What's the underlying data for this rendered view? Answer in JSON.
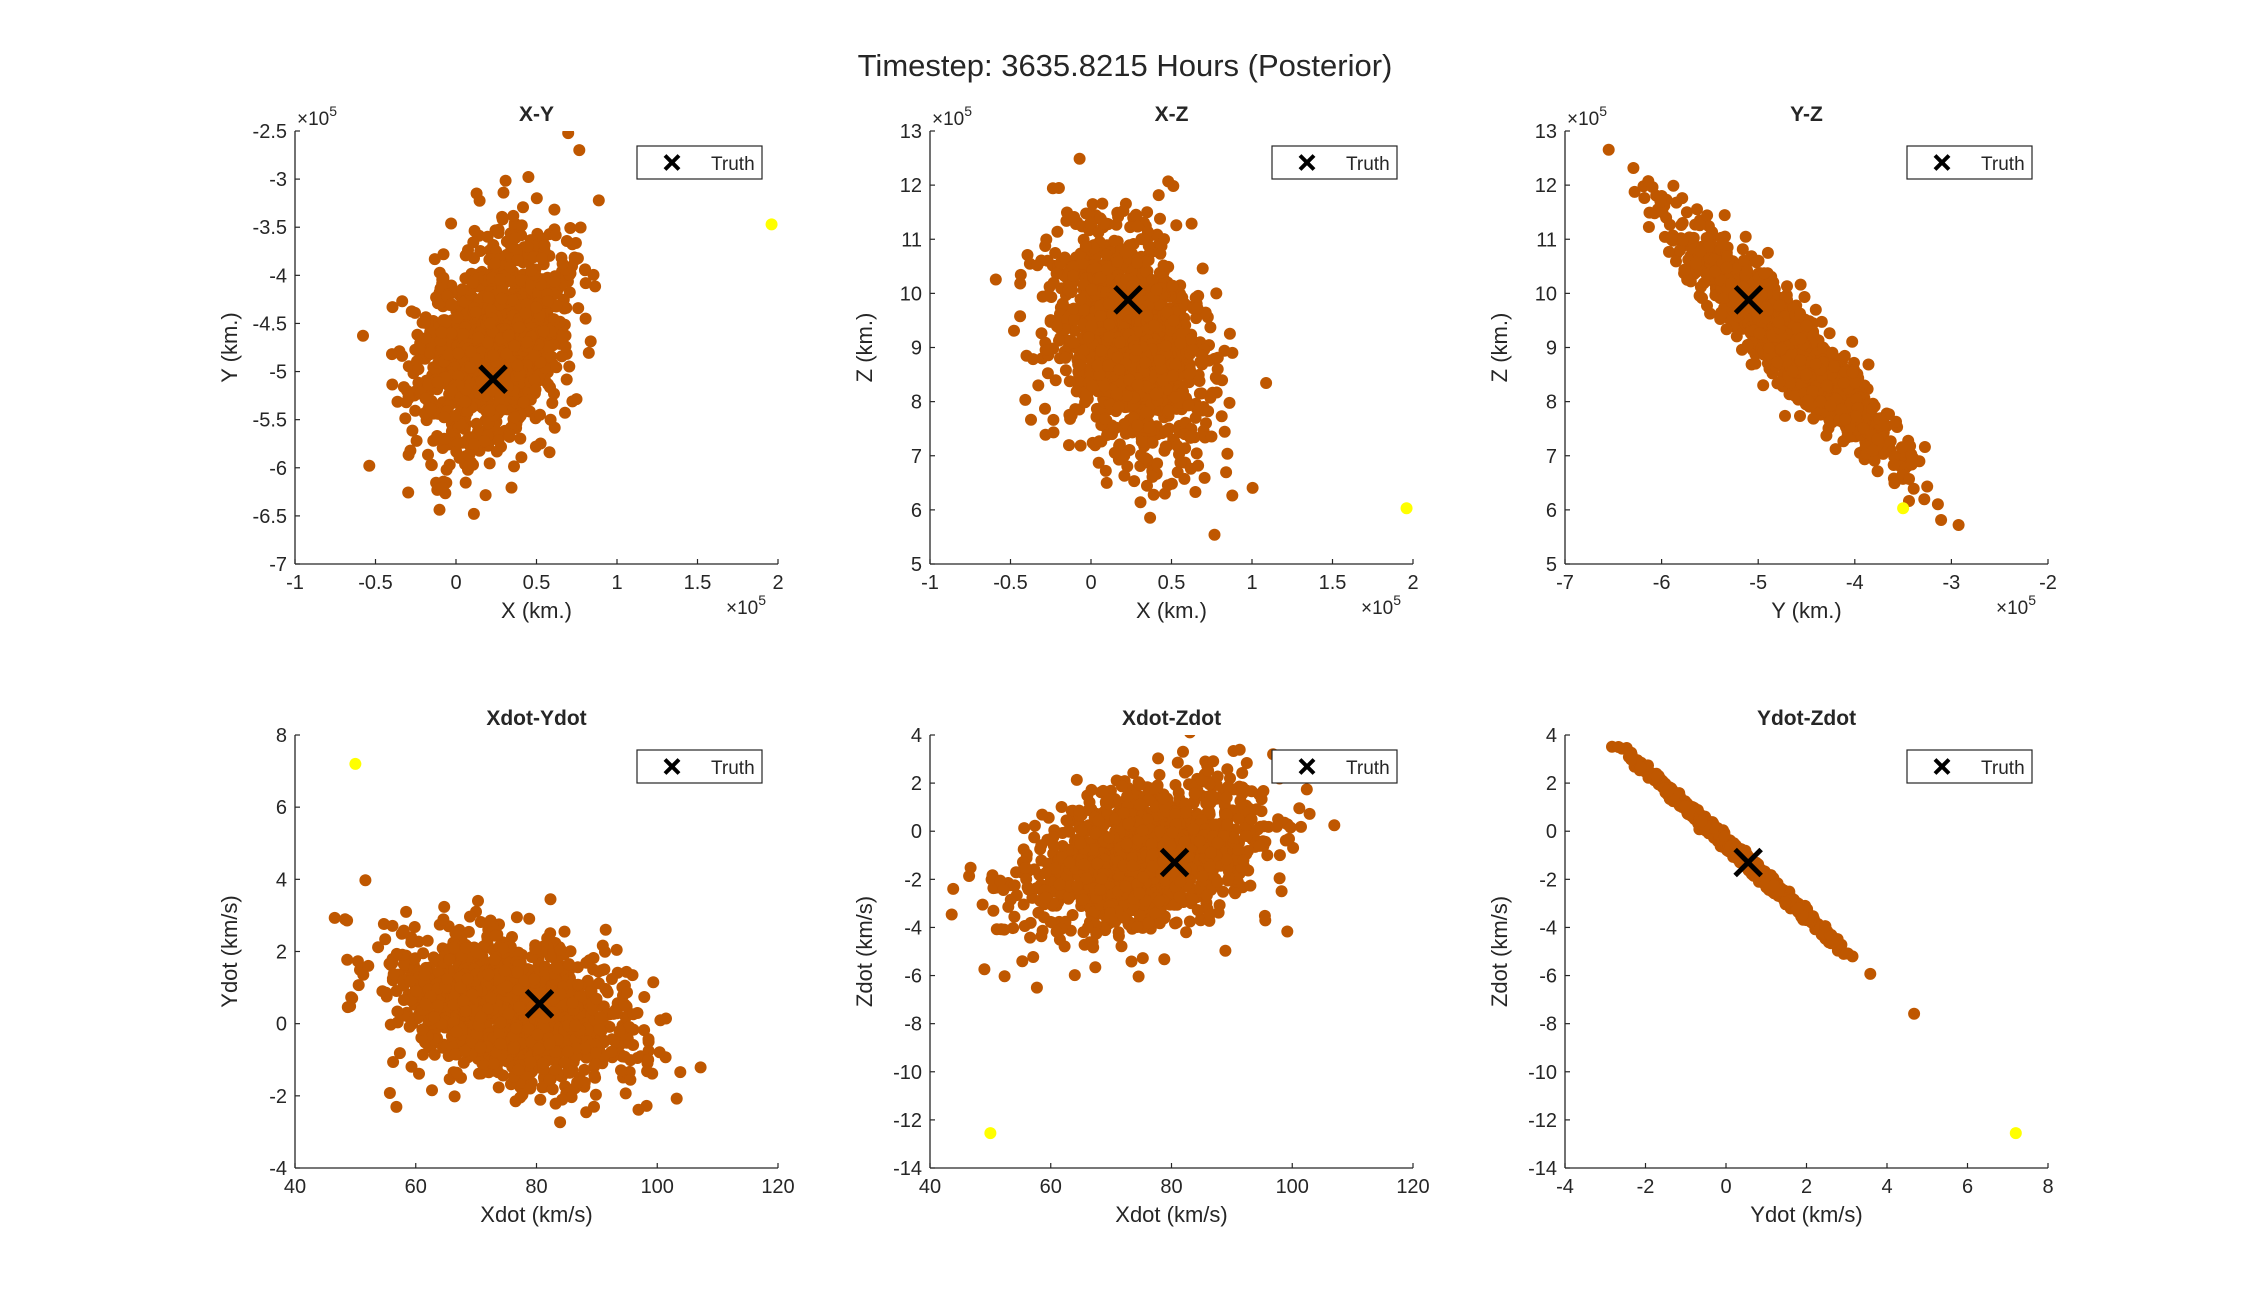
{
  "figure": {
    "title": "Timestep: 3635.8215 Hours (Posterior)"
  },
  "colors": {
    "particle": "#bf5700",
    "outlier": "#ffff00",
    "truth": "#000000",
    "axis": "#262626",
    "background": "#ffffff"
  },
  "chart_data": [
    {
      "type": "scatter",
      "title": "X-Y",
      "xlabel": "X (km.)",
      "ylabel": "Y (km.)",
      "xlim": [
        -1,
        2
      ],
      "ylim": [
        -7,
        -2.5
      ],
      "xticks": [
        -1,
        -0.5,
        0,
        0.5,
        1,
        1.5,
        2
      ],
      "yticks": [
        -7,
        -6.5,
        -6,
        -5.5,
        -5,
        -4.5,
        -4,
        -3.5,
        -3,
        -2.5
      ],
      "x_exponent": "×10^5",
      "y_exponent": "×10^5",
      "legend": {
        "label": "Truth",
        "location": "top-right"
      },
      "truth": {
        "x": 0.23,
        "y": -5.08
      },
      "outlier": {
        "x": 1.96,
        "y": -3.47
      },
      "cloud": {
        "center": [
          0.22,
          -4.7
        ],
        "spread": [
          0.23,
          0.55
        ],
        "rho": 0.35,
        "n": 1400,
        "seed": 11
      }
    },
    {
      "type": "scatter",
      "title": "X-Z",
      "xlabel": "X (km.)",
      "ylabel": "Z (km.)",
      "xlim": [
        -1,
        2
      ],
      "ylim": [
        5,
        13
      ],
      "xticks": [
        -1,
        -0.5,
        0,
        0.5,
        1,
        1.5,
        2
      ],
      "yticks": [
        5,
        6,
        7,
        8,
        9,
        10,
        11,
        12,
        13
      ],
      "x_exponent": "×10^5",
      "y_exponent": "×10^5",
      "legend": {
        "label": "Truth",
        "location": "top-right"
      },
      "truth": {
        "x": 0.23,
        "y": 9.88
      },
      "outlier": {
        "x": 1.96,
        "y": 6.03
      },
      "cloud": {
        "center": [
          0.22,
          9.1
        ],
        "spread": [
          0.23,
          1.05
        ],
        "rho": -0.3,
        "n": 1400,
        "seed": 23
      }
    },
    {
      "type": "scatter",
      "title": "Y-Z",
      "xlabel": "Y (km.)",
      "ylabel": "Z (km.)",
      "xlim": [
        -7,
        -2
      ],
      "ylim": [
        5,
        13
      ],
      "xticks": [
        -7,
        -6,
        -5,
        -4,
        -3,
        -2
      ],
      "yticks": [
        5,
        6,
        7,
        8,
        9,
        10,
        11,
        12,
        13
      ],
      "x_exponent": "×10^5",
      "y_exponent": "×10^5",
      "legend": {
        "label": "Truth",
        "location": "top-right"
      },
      "truth": {
        "x": -5.1,
        "y": 9.88
      },
      "outlier": {
        "x": -3.5,
        "y": 6.03
      },
      "cloud": {
        "center": [
          -4.7,
          9.1
        ],
        "spread": [
          0.55,
          1.05
        ],
        "rho": -0.93,
        "n": 1400,
        "seed": 37
      }
    },
    {
      "type": "scatter",
      "title": "Xdot-Ydot",
      "xlabel": "Xdot (km/s)",
      "ylabel": "Ydot (km/s)",
      "xlim": [
        40,
        120
      ],
      "ylim": [
        -4,
        8
      ],
      "xticks": [
        40,
        60,
        80,
        100,
        120
      ],
      "yticks": [
        -4,
        -2,
        0,
        2,
        4,
        6,
        8
      ],
      "legend": {
        "label": "Truth",
        "location": "top-right"
      },
      "truth": {
        "x": 80.5,
        "y": 0.55
      },
      "outlier": {
        "x": 50.0,
        "y": 7.2
      },
      "cloud": {
        "center": [
          76,
          0.35
        ],
        "spread": [
          9.5,
          1.05
        ],
        "rho": -0.32,
        "n": 1400,
        "seed": 41
      }
    },
    {
      "type": "scatter",
      "title": "Xdot-Zdot",
      "xlabel": "Xdot (km/s)",
      "ylabel": "Zdot (km/s)",
      "xlim": [
        40,
        120
      ],
      "ylim": [
        -14,
        4
      ],
      "xticks": [
        40,
        60,
        80,
        100,
        120
      ],
      "yticks": [
        -14,
        -12,
        -10,
        -8,
        -6,
        -4,
        -2,
        0,
        2,
        4
      ],
      "legend": {
        "label": "Truth",
        "location": "top-right"
      },
      "truth": {
        "x": 80.5,
        "y": -1.3
      },
      "outlier": {
        "x": 50.0,
        "y": -12.55
      },
      "cloud": {
        "center": [
          76,
          -1.0
        ],
        "spread": [
          9.5,
          1.55
        ],
        "rho": 0.35,
        "n": 1400,
        "seed": 53
      }
    },
    {
      "type": "scatter",
      "title": "Ydot-Zdot",
      "xlabel": "Ydot (km/s)",
      "ylabel": "Zdot (km/s)",
      "xlim": [
        -4,
        8
      ],
      "ylim": [
        -14,
        4
      ],
      "xticks": [
        -4,
        -2,
        0,
        2,
        4,
        6,
        8
      ],
      "yticks": [
        -14,
        -12,
        -10,
        -8,
        -6,
        -4,
        -2,
        0,
        2,
        4
      ],
      "legend": {
        "label": "Truth",
        "location": "top-right"
      },
      "truth": {
        "x": 0.55,
        "y": -1.3
      },
      "outlier": {
        "x": 7.2,
        "y": -12.55
      },
      "cloud": {
        "center": [
          0.35,
          -1.0
        ],
        "spread": [
          1.05,
          1.6
        ],
        "rho": -0.997,
        "n": 1400,
        "seed": 67
      }
    }
  ]
}
